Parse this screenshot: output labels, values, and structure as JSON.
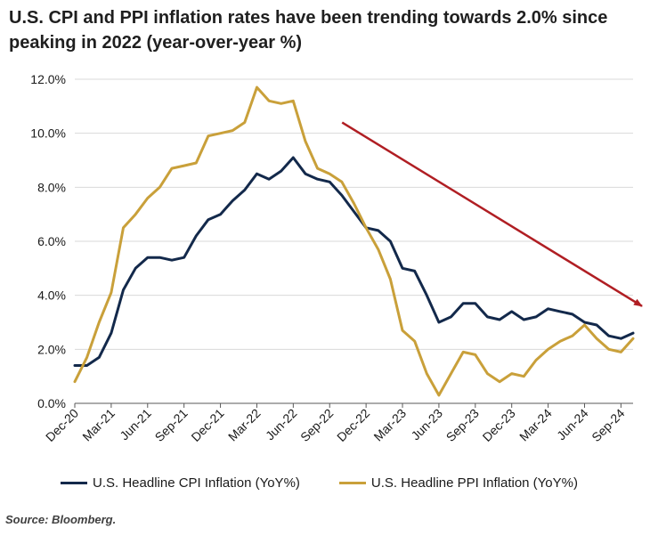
{
  "title": "U.S. CPI and PPI inflation rates have been trending towards 2.0% since peaking in 2022 (year-over-year %)",
  "source": "Source: Bloomberg.",
  "colors": {
    "cpi": "#13294b",
    "ppi": "#c9a03a",
    "arrow": "#b01e23",
    "grid": "#d9d9d9"
  },
  "chart_data": {
    "type": "line",
    "title": "U.S. CPI and PPI inflation rates have been trending towards 2.0% since peaking in 2022 (year-over-year %)",
    "xlabel": "",
    "ylabel": "",
    "ylim": [
      0,
      12
    ],
    "yticks": [
      "0.0%",
      "2.0%",
      "4.0%",
      "6.0%",
      "8.0%",
      "10.0%",
      "12.0%"
    ],
    "x": [
      "Dec-20",
      "Jan-21",
      "Feb-21",
      "Mar-21",
      "Apr-21",
      "May-21",
      "Jun-21",
      "Jul-21",
      "Aug-21",
      "Sep-21",
      "Oct-21",
      "Nov-21",
      "Dec-21",
      "Jan-22",
      "Feb-22",
      "Mar-22",
      "Apr-22",
      "May-22",
      "Jun-22",
      "Jul-22",
      "Aug-22",
      "Sep-22",
      "Oct-22",
      "Nov-22",
      "Dec-22",
      "Jan-23",
      "Feb-23",
      "Mar-23",
      "Apr-23",
      "May-23",
      "Jun-23",
      "Jul-23",
      "Aug-23",
      "Sep-23",
      "Oct-23",
      "Nov-23",
      "Dec-23",
      "Jan-24",
      "Feb-24",
      "Mar-24",
      "Apr-24",
      "May-24",
      "Jun-24",
      "Jul-24",
      "Aug-24",
      "Sep-24",
      "Oct-24"
    ],
    "x_tick_labels": [
      "Dec-20",
      "Mar-21",
      "Jun-21",
      "Sep-21",
      "Dec-21",
      "Mar-22",
      "Jun-22",
      "Sep-22",
      "Dec-22",
      "Mar-23",
      "Jun-23",
      "Sep-23",
      "Dec-23",
      "Mar-24",
      "Jun-24",
      "Sep-24"
    ],
    "series": [
      {
        "name": "U.S. Headline CPI Inflation (YoY%)",
        "values": [
          1.4,
          1.4,
          1.7,
          2.6,
          4.2,
          5.0,
          5.4,
          5.4,
          5.3,
          5.4,
          6.2,
          6.8,
          7.0,
          7.5,
          7.9,
          8.5,
          8.3,
          8.6,
          9.1,
          8.5,
          8.3,
          8.2,
          7.7,
          7.1,
          6.5,
          6.4,
          6.0,
          5.0,
          4.9,
          4.0,
          3.0,
          3.2,
          3.7,
          3.7,
          3.2,
          3.1,
          3.4,
          3.1,
          3.2,
          3.5,
          3.4,
          3.3,
          3.0,
          2.9,
          2.5,
          2.4,
          2.6
        ]
      },
      {
        "name": "U.S. Headline PPI Inflation (YoY%)",
        "values": [
          0.8,
          1.7,
          3.0,
          4.1,
          6.5,
          7.0,
          7.6,
          8.0,
          8.7,
          8.8,
          8.9,
          9.9,
          10.0,
          10.1,
          10.4,
          11.7,
          11.2,
          11.1,
          11.2,
          9.7,
          8.7,
          8.5,
          8.2,
          7.4,
          6.5,
          5.7,
          4.6,
          2.7,
          2.3,
          1.1,
          0.3,
          1.1,
          1.9,
          1.8,
          1.1,
          0.8,
          1.1,
          1.0,
          1.6,
          2.0,
          2.3,
          2.5,
          2.9,
          2.4,
          2.0,
          1.9,
          2.4
        ]
      }
    ],
    "trend_arrow": {
      "from": [
        "Sep-22",
        10.4
      ],
      "to": [
        "Oct-24",
        3.6
      ]
    },
    "grid": true,
    "legend": "bottom"
  }
}
